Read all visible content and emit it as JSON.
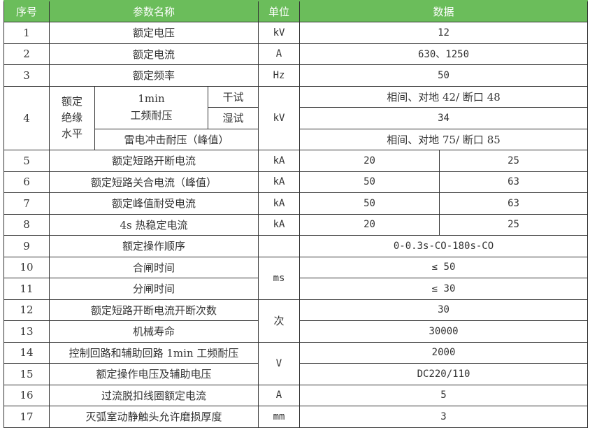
{
  "doc": {
    "type": "specification-table",
    "colors": {
      "header_bg": "#6BBD5B",
      "header_text": "#FFFFFF",
      "border": "#333333",
      "body_text": "#333333"
    }
  },
  "header": {
    "no": "序号",
    "name": "参数名称",
    "unit": "单位",
    "data": "数据"
  },
  "rows": {
    "r1": {
      "no": "1",
      "name": "额定电压",
      "unit": "kV",
      "data": "12"
    },
    "r2": {
      "no": "2",
      "name": "额定电流",
      "unit": "A",
      "data": "630、1250"
    },
    "r3": {
      "no": "3",
      "name": "额定频率",
      "unit": "Hz",
      "data": "50"
    },
    "r4": {
      "no": "4",
      "group": "额定\n绝缘\n水平",
      "sub_name": "1min\n工频耐压",
      "dry_label": "干试",
      "wet_label": "湿试",
      "lightning_label": "雷电冲击耐压（峰值）",
      "unit": "kV",
      "data_dry": "相间、对地 42/ 断口 48",
      "data_wet": "34",
      "data_lightning": "相间、对地 75/ 断口 85"
    },
    "r5": {
      "no": "5",
      "name": "额定短路开断电流",
      "unit": "kA",
      "data_left": "20",
      "data_right": "25"
    },
    "r6": {
      "no": "6",
      "name": "额定短路关合电流（峰值）",
      "unit": "kA",
      "data_left": "50",
      "data_right": "63"
    },
    "r7": {
      "no": "7",
      "name": "额定峰值耐受电流",
      "unit": "kA",
      "data_left": "50",
      "data_right": "63"
    },
    "r8": {
      "no": "8",
      "name": "4s 热稳定电流",
      "unit": "kA",
      "data_left": "20",
      "data_right": "25"
    },
    "r9": {
      "no": "9",
      "name": "额定操作顺序",
      "unit": "",
      "data": "0-0.3s-CO-180s-CO"
    },
    "r10": {
      "no": "10",
      "name": "合闸时间",
      "unit": "ms",
      "data": "≤ 50"
    },
    "r11": {
      "no": "11",
      "name": "分闸时间",
      "data": "≤ 30"
    },
    "r12": {
      "no": "12",
      "name": "额定短路开断电流开断次数",
      "unit": "次",
      "data": "30"
    },
    "r13": {
      "no": "13",
      "name": "机械寿命",
      "data": "30000"
    },
    "r14": {
      "no": "14",
      "name": "控制回路和辅助回路 1min 工频耐压",
      "unit": "V",
      "data": "2000"
    },
    "r15": {
      "no": "15",
      "name": "额定操作电压及辅助电压",
      "data": "DC220/110"
    },
    "r16": {
      "no": "16",
      "name": "过流脱扣线圈额定电流",
      "unit": "A",
      "data": "5"
    },
    "r17": {
      "no": "17",
      "name": "灭弧室动静触头允许磨损厚度",
      "unit": "mm",
      "data": "3"
    }
  }
}
